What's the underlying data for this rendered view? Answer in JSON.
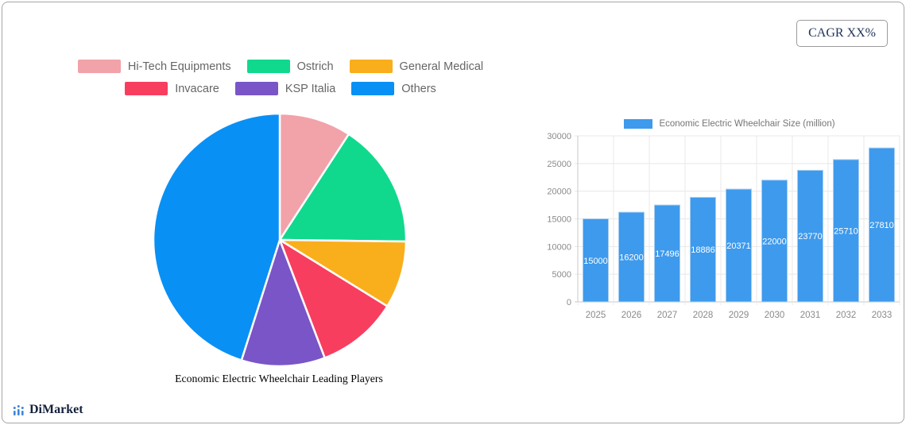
{
  "card": {
    "cagr_label": "CAGR XX%"
  },
  "branding": {
    "logo_icon": "bar-chart-logo-icon",
    "logo_text": "DiMarket"
  },
  "colors": {
    "bar_blue": "#3e9aec",
    "bar_border": "#a5cdf2",
    "bar_value_label": "#ffffff",
    "axis_text": "#8a8a8a",
    "legend_text": "#666666",
    "grid_line": "#e8e8e8",
    "axis_line": "#c9c9c9",
    "card_border": "#a6a6a6",
    "logo_blue": "#3f86d8",
    "logo_navy": "#14213c"
  },
  "chart_data": [
    {
      "type": "pie",
      "title": "Economic Electric Wheelchair Leading Players",
      "labels": [
        "Hi-Tech Equipments",
        "Ostrich",
        "General Medical",
        "Invacare",
        "KSP Italia",
        "Others"
      ],
      "values": [
        9.2,
        16.0,
        8.6,
        10.4,
        10.7,
        45.1
      ],
      "colors": [
        "#f2a2a9",
        "#10d98e",
        "#f9ae1c",
        "#f83e5f",
        "#7a55c7",
        "#0990f5"
      ],
      "legend_position": "top",
      "legend_rows": [
        [
          0,
          1,
          2
        ],
        [
          3,
          4,
          5
        ]
      ],
      "start_angle": "12-oclock",
      "direction": "clockwise"
    },
    {
      "type": "bar",
      "categories": [
        "2025",
        "2026",
        "2027",
        "2028",
        "2029",
        "2030",
        "2031",
        "2032",
        "2033"
      ],
      "series": [
        {
          "name": "Economic Electric Wheelchair Size (million)",
          "values": [
            15000,
            16200,
            17496,
            18886,
            20371,
            22000,
            23770,
            25710,
            27810
          ]
        }
      ],
      "ylim": [
        0,
        30000
      ],
      "ytick_step": 5000,
      "yticks": [
        "0",
        "5000",
        "10000",
        "15000",
        "20000",
        "25000",
        "30000"
      ],
      "grid": true,
      "legend_position": "top",
      "value_labels": "inside-center",
      "xlabel": "",
      "ylabel": ""
    }
  ]
}
